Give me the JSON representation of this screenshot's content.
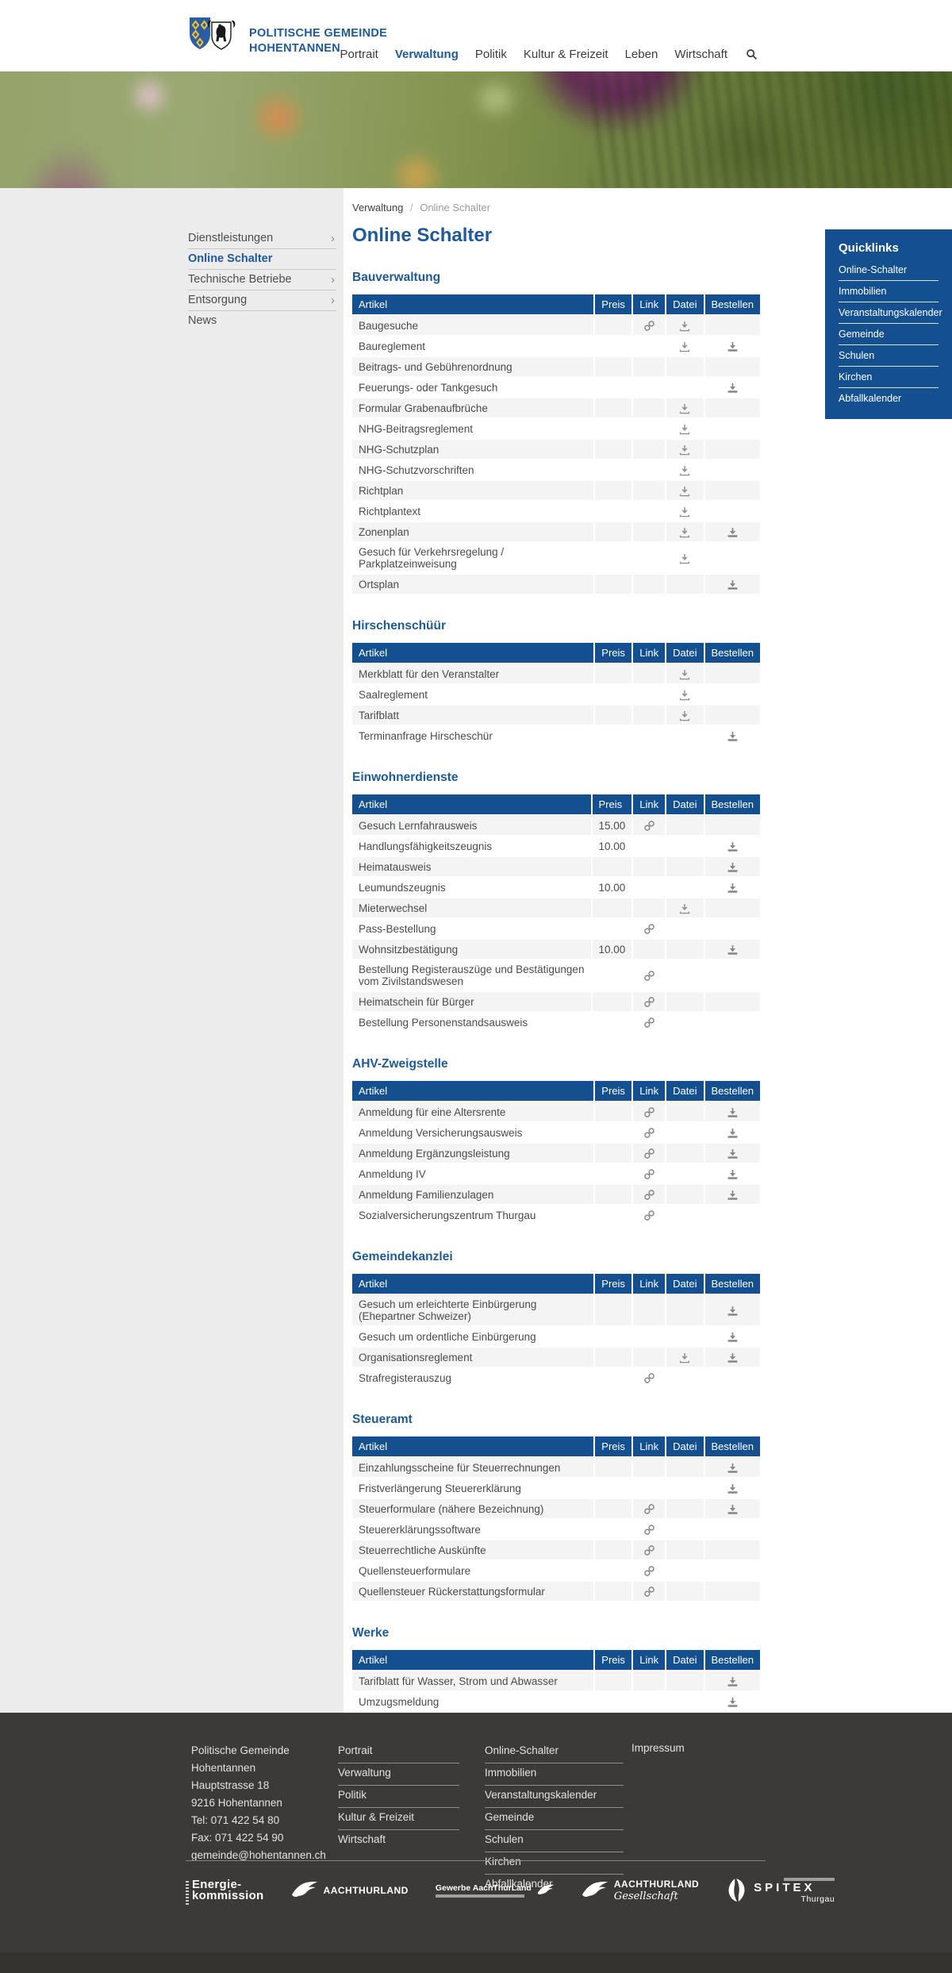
{
  "glyphs": {
    "chevron_right": "›",
    "breadcrumb_separator": "/"
  },
  "colors": {
    "accent_blue": "#14508f",
    "brand_blue": "#1d5a9b",
    "sidebar_bg": "#ececec",
    "row_alt": "#f4f4f4",
    "icon_gray": "#8e8e8e",
    "footer_bg": "#3b3a38"
  },
  "header": {
    "brand_line1": "POLITISCHE GEMEINDE",
    "brand_line2": "HOHENTANNEN",
    "nav": [
      {
        "label": "Portrait"
      },
      {
        "label": "Verwaltung",
        "active": true
      },
      {
        "label": "Politik"
      },
      {
        "label": "Kultur & Freizeit"
      },
      {
        "label": "Leben"
      },
      {
        "label": "Wirtschaft"
      }
    ]
  },
  "breadcrumb": {
    "parent": "Verwaltung",
    "current": "Online Schalter"
  },
  "sidebar": {
    "items": [
      {
        "label": "Dienstleistungen",
        "chevron": true
      },
      {
        "label": "Online Schalter",
        "active": true
      },
      {
        "label": "Technische Betriebe",
        "chevron": true
      },
      {
        "label": "Entsorgung",
        "chevron": true
      },
      {
        "label": "News"
      }
    ]
  },
  "page": {
    "title": "Online Schalter"
  },
  "table_columns": [
    "Artikel",
    "Preis",
    "Link",
    "Datei",
    "Bestellen"
  ],
  "sections": [
    {
      "title": "Bauverwaltung",
      "rows": [
        {
          "artikel": "Baugesuche",
          "link": true,
          "datei": true
        },
        {
          "artikel": "Baureglement",
          "datei": true,
          "bestellen": true
        },
        {
          "artikel": "Beitrags- und Gebührenordnung"
        },
        {
          "artikel": "Feuerungs- oder Tankgesuch",
          "bestellen": true
        },
        {
          "artikel": "Formular Grabenaufbrüche",
          "datei": true
        },
        {
          "artikel": "NHG-Beitragsreglement",
          "datei": true
        },
        {
          "artikel": "NHG-Schutzplan",
          "datei": true
        },
        {
          "artikel": "NHG-Schutzvorschriften",
          "datei": true
        },
        {
          "artikel": "Richtplan",
          "datei": true
        },
        {
          "artikel": "Richtplantext",
          "datei": true
        },
        {
          "artikel": "Zonenplan",
          "datei": true,
          "bestellen": true
        },
        {
          "artikel": "Gesuch für Verkehrsregelung / Parkplatzeinweisung",
          "datei": true
        },
        {
          "artikel": "Ortsplan",
          "bestellen": true
        }
      ]
    },
    {
      "title": "Hirschenschüür",
      "rows": [
        {
          "artikel": "Merkblatt für den Veranstalter",
          "datei": true
        },
        {
          "artikel": "Saalreglement",
          "datei": true
        },
        {
          "artikel": "Tarifblatt",
          "datei": true
        },
        {
          "artikel": "Terminanfrage Hirscheschür",
          "bestellen": true
        }
      ]
    },
    {
      "title": "Einwohnerdienste",
      "rows": [
        {
          "artikel": "Gesuch Lernfahrausweis",
          "preis": "15.00",
          "link": true
        },
        {
          "artikel": "Handlungsfähigkeitszeugnis",
          "preis": "10.00",
          "bestellen": true
        },
        {
          "artikel": "Heimatausweis",
          "bestellen": true
        },
        {
          "artikel": "Leumundszeugnis",
          "preis": "10.00",
          "bestellen": true
        },
        {
          "artikel": "Mieterwechsel",
          "datei": true
        },
        {
          "artikel": "Pass-Bestellung",
          "link": true
        },
        {
          "artikel": "Wohnsitzbestätigung",
          "preis": "10.00",
          "bestellen": true
        },
        {
          "artikel": "Bestellung Registerauszüge und Bestätigungen vom Zivilstandswesen",
          "link": true
        },
        {
          "artikel": "Heimatschein für Bürger",
          "link": true
        },
        {
          "artikel": "Bestellung Personenstandsausweis",
          "link": true
        }
      ]
    },
    {
      "title": "AHV-Zweigstelle",
      "rows": [
        {
          "artikel": "Anmeldung für eine Altersrente",
          "link": true,
          "bestellen": true
        },
        {
          "artikel": "Anmeldung Versicherungsausweis",
          "link": true,
          "bestellen": true
        },
        {
          "artikel": "Anmeldung Ergänzungsleistung",
          "link": true,
          "bestellen": true
        },
        {
          "artikel": "Anmeldung IV",
          "link": true,
          "bestellen": true
        },
        {
          "artikel": "Anmeldung Familienzulagen",
          "link": true,
          "bestellen": true
        },
        {
          "artikel": "Sozialversicherungszentrum Thurgau",
          "link": true
        }
      ]
    },
    {
      "title": "Gemeindekanzlei",
      "rows": [
        {
          "artikel": "Gesuch um erleichterte Einbürgerung (Ehepartner Schweizer)",
          "bestellen": true
        },
        {
          "artikel": "Gesuch um ordentliche Einbürgerung",
          "bestellen": true
        },
        {
          "artikel": "Organisationsreglement",
          "datei": true,
          "bestellen": true
        },
        {
          "artikel": "Strafregisterauszug",
          "link": true
        }
      ]
    },
    {
      "title": "Steueramt",
      "rows": [
        {
          "artikel": "Einzahlungsscheine für Steuerrechnungen",
          "bestellen": true
        },
        {
          "artikel": "Fristverlängerung Steuererklärung",
          "bestellen": true
        },
        {
          "artikel": "Steuerformulare (nähere Bezeichnung)",
          "link": true,
          "bestellen": true
        },
        {
          "artikel": "Steuererklärungssoftware",
          "link": true
        },
        {
          "artikel": "Steuerrechtliche Auskünfte",
          "link": true
        },
        {
          "artikel": "Quellensteuerformulare",
          "link": true
        },
        {
          "artikel": "Quellensteuer Rückerstattungsformular",
          "link": true
        }
      ]
    },
    {
      "title": "Werke",
      "rows": [
        {
          "artikel": "Tarifblatt für Wasser, Strom und Abwasser",
          "bestellen": true
        },
        {
          "artikel": "Umzugsmeldung",
          "bestellen": true
        }
      ]
    }
  ],
  "quicklinks": {
    "title": "Quicklinks",
    "items": [
      "Online-Schalter",
      "Immobilien",
      "Veranstaltungskalender",
      "Gemeinde",
      "Schulen",
      "Kirchen",
      "Abfallkalender"
    ]
  },
  "footer": {
    "address_lines": [
      "Politische Gemeinde",
      "Hohentannen",
      "Hauptstrasse 18",
      "9216 Hohentannen",
      "Tel: 071 422 54 80",
      "Fax: 071 422 54 90",
      "gemeinde@hohentannen.ch"
    ],
    "nav_col1": [
      "Portrait",
      "Verwaltung",
      "Politik",
      "Kultur & Freizeit",
      "Wirtschaft"
    ],
    "nav_col2": [
      "Online-Schalter",
      "Immobilien",
      "Veranstaltungskalender",
      "Gemeinde",
      "Schulen",
      "Kirchen",
      "Abfallkalender"
    ],
    "impressum": "Impressum",
    "logos": [
      {
        "line1": "Energie-",
        "line2": "kommission"
      },
      {
        "label": "AACHTHURLAND"
      },
      {
        "label": "Gewerbe AachThurLand"
      },
      {
        "label": "AACHTHURLAND",
        "sublabel": "Gesellschaft"
      },
      {
        "label": "SPITEX",
        "sublabel": "Thurgau"
      }
    ]
  }
}
